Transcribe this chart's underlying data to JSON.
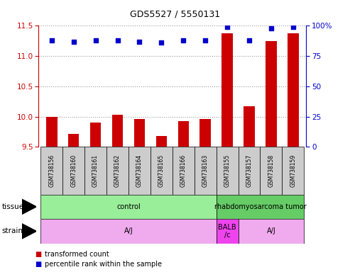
{
  "title": "GDS5527 / 5550131",
  "samples": [
    "GSM738156",
    "GSM738160",
    "GSM738161",
    "GSM738162",
    "GSM738164",
    "GSM738165",
    "GSM738166",
    "GSM738163",
    "GSM738155",
    "GSM738157",
    "GSM738158",
    "GSM738159"
  ],
  "transformed_counts": [
    10.0,
    9.72,
    9.9,
    10.03,
    9.96,
    9.68,
    9.93,
    9.96,
    11.38,
    10.17,
    11.25,
    11.38
  ],
  "percentile_ranks": [
    88,
    87,
    88,
    88,
    87,
    86,
    88,
    88,
    99,
    88,
    98,
    99
  ],
  "ylim_left": [
    9.5,
    11.5
  ],
  "ylim_right": [
    0,
    100
  ],
  "yticks_left": [
    9.5,
    10.0,
    10.5,
    11.0,
    11.5
  ],
  "yticks_right": [
    0,
    25,
    50,
    75,
    100
  ],
  "bar_color": "#cc0000",
  "dot_color": "#0000cc",
  "tissue_groups": [
    {
      "label": "control",
      "start": 0,
      "end": 8,
      "color": "#99ee99"
    },
    {
      "label": "rhabdomyosarcoma tumor",
      "start": 8,
      "end": 12,
      "color": "#66cc66"
    }
  ],
  "strain_groups": [
    {
      "label": "A/J",
      "start": 0,
      "end": 8,
      "color": "#f0aaee"
    },
    {
      "label": "BALB\n/c",
      "start": 8,
      "end": 9,
      "color": "#ee44ee"
    },
    {
      "label": "A/J",
      "start": 9,
      "end": 12,
      "color": "#f0aaee"
    }
  ],
  "left_axis_color": "#cc0000",
  "right_axis_color": "#0000cc",
  "background_color": "#ffffff",
  "plot_bg_color": "#ffffff",
  "grid_color": "#999999",
  "sample_box_color": "#cccccc",
  "legend_red_label": "transformed count",
  "legend_blue_label": "percentile rank within the sample"
}
